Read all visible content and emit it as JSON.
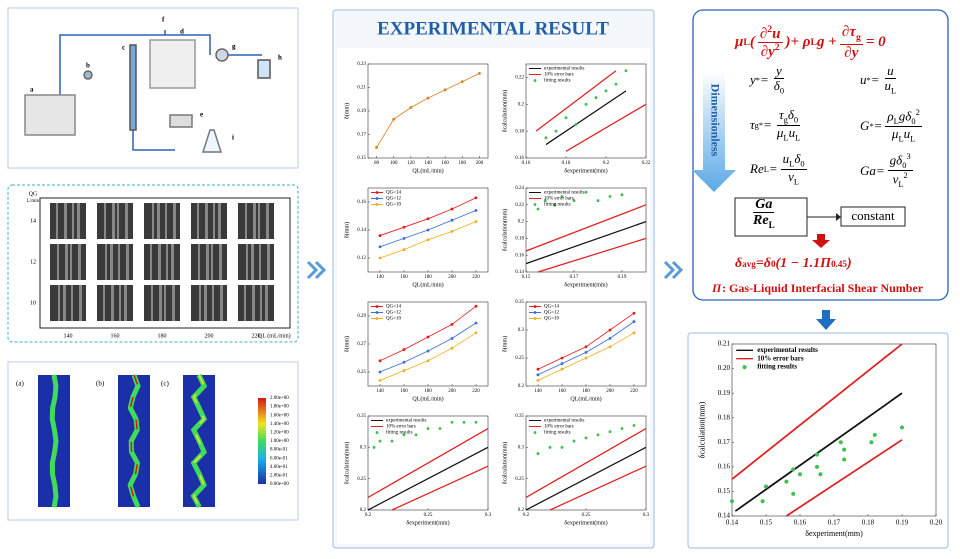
{
  "apparatus": {
    "labels": [
      "a",
      "b",
      "c",
      "d",
      "e",
      "f",
      "g",
      "h",
      "i"
    ]
  },
  "images": {
    "qg": "QG",
    "qg_unit": "L/min",
    "rows": [
      "14",
      "12",
      "10"
    ],
    "cols": [
      "140",
      "160",
      "180",
      "200",
      "220"
    ],
    "ql": "QL (mL/min)"
  },
  "cfd": {
    "panels": [
      "(a)",
      "(b)",
      "(c)"
    ],
    "colorbar": [
      "2.00e+00",
      "1.80e+00",
      "1.60e+00",
      "1.40e+00",
      "1.20e+00",
      "1.00e+00",
      "8.00e-01",
      "6.00e-01",
      "4.00e-01",
      "2.00e-01",
      "0.00e+00"
    ]
  },
  "results": {
    "title": "EXPERIMENTAL RESULT",
    "charts": [
      {
        "type": "line",
        "xlabel": "QL(mL/min)",
        "ylabel": "δ(mm)",
        "xlim": [
          70,
          210
        ],
        "xticks": [
          80,
          100,
          120,
          140,
          160,
          180,
          200
        ],
        "ylim": [
          0.15,
          0.23
        ],
        "yticks": [
          0.15,
          0.17,
          0.19,
          0.21,
          0.23
        ],
        "series": [
          {
            "color": "#d9822b",
            "x": [
              80,
              100,
              120,
              140,
              160,
              180,
              200
            ],
            "values": [
              0.159,
              0.183,
              0.193,
              0.201,
              0.208,
              0.215,
              0.222
            ]
          }
        ]
      },
      {
        "type": "parity",
        "xlabel": "δexperiment(mm)",
        "ylabel": "δcalculation(mm)",
        "xlim": [
          0.16,
          0.22
        ],
        "xticks": [
          0.16,
          0.18,
          0.2,
          0.22
        ],
        "ylim": [
          0.16,
          0.23
        ],
        "yticks": [
          0.16,
          0.18,
          0.2,
          0.22
        ],
        "lines": [
          {
            "name": "experimental results",
            "color": "#111",
            "x": [
              0.17,
              0.21
            ],
            "values": [
              0.17,
              0.21
            ]
          },
          {
            "name": "10% error bars",
            "color": "#e02020",
            "x": [
              0.165,
              0.205
            ],
            "values": [
              0.18,
              0.225
            ]
          },
          {
            "color": "#e02020",
            "x": [
              0.18,
              0.22
            ],
            "values": [
              0.165,
              0.2
            ]
          }
        ],
        "series": [
          {
            "name": "fitting results",
            "color": "#3fbf4f",
            "x": [
              0.17,
              0.175,
              0.18,
              0.185,
              0.19,
              0.195,
              0.2,
              0.205,
              0.21
            ],
            "values": [
              0.175,
              0.18,
              0.19,
              0.185,
              0.2,
              0.205,
              0.21,
              0.215,
              0.225
            ]
          }
        ]
      },
      {
        "type": "line",
        "xlabel": "QL(mL/min)",
        "ylabel": "δ(mm)",
        "xlim": [
          130,
          230
        ],
        "xticks": [
          140,
          160,
          180,
          200,
          220
        ],
        "ylim": [
          0.11,
          0.17
        ],
        "yticks": [
          0.12,
          0.14,
          0.16
        ],
        "series": [
          {
            "name": "QG=14",
            "color": "#e02020",
            "x": [
              140,
              160,
              180,
              200,
              220
            ],
            "values": [
              0.136,
              0.142,
              0.148,
              0.155,
              0.163
            ]
          },
          {
            "name": "QG=12",
            "color": "#3b6fd6",
            "x": [
              140,
              160,
              180,
              200,
              220
            ],
            "values": [
              0.128,
              0.134,
              0.14,
              0.147,
              0.154
            ]
          },
          {
            "name": "QG=10",
            "color": "#f0b020",
            "x": [
              140,
              160,
              180,
              200,
              220
            ],
            "values": [
              0.12,
              0.126,
              0.133,
              0.139,
              0.146
            ]
          }
        ]
      },
      {
        "type": "parity",
        "xlabel": "δexperiment(mm)",
        "ylabel": "δcalculation(mm)",
        "xlim": [
          0.15,
          0.2
        ],
        "xticks": [
          0.15,
          0.17,
          0.19
        ],
        "ylim": [
          0.14,
          0.24
        ],
        "yticks": [
          0.14,
          0.16,
          0.18,
          0.2,
          0.22,
          0.24
        ],
        "lines": [
          {
            "name": "experimental results",
            "color": "#111",
            "x": [
              0.15,
              0.2
            ],
            "values": [
              0.15,
              0.2
            ]
          },
          {
            "name": "10% error bars",
            "color": "#e02020",
            "x": [
              0.15,
              0.2
            ],
            "values": [
              0.165,
              0.22
            ]
          },
          {
            "color": "#e02020",
            "x": [
              0.155,
              0.2
            ],
            "values": [
              0.14,
              0.18
            ]
          }
        ],
        "series": [
          {
            "name": "fitting results",
            "color": "#3fbf4f",
            "x": [
              0.155,
              0.158,
              0.162,
              0.165,
              0.17,
              0.175,
              0.18,
              0.185,
              0.19
            ],
            "values": [
              0.215,
              0.225,
              0.22,
              0.23,
              0.225,
              0.235,
              0.225,
              0.23,
              0.232
            ]
          }
        ]
      },
      {
        "type": "line",
        "xlabel": "QL(mL/min)",
        "ylabel": "δ(mm)",
        "xlim": [
          130,
          230
        ],
        "xticks": [
          140,
          160,
          180,
          200,
          220
        ],
        "ylim": [
          0.24,
          0.3
        ],
        "yticks": [
          0.25,
          0.27,
          0.29
        ],
        "series": [
          {
            "name": "QG=14",
            "color": "#e02020",
            "x": [
              140,
              160,
              180,
              200,
              220
            ],
            "values": [
              0.258,
              0.266,
              0.275,
              0.284,
              0.297
            ]
          },
          {
            "name": "QG=12",
            "color": "#3b6fd6",
            "x": [
              140,
              160,
              180,
              200,
              220
            ],
            "values": [
              0.25,
              0.257,
              0.265,
              0.274,
              0.285
            ]
          },
          {
            "name": "QG=10",
            "color": "#f0b020",
            "x": [
              140,
              160,
              180,
              200,
              220
            ],
            "values": [
              0.244,
              0.251,
              0.258,
              0.267,
              0.278
            ]
          }
        ]
      },
      {
        "type": "line",
        "xlabel": "QL(mL/min)",
        "ylabel": "δ(mm)",
        "xlim": [
          130,
          230
        ],
        "xticks": [
          140,
          160,
          180,
          200,
          220
        ],
        "ylim": [
          0.2,
          0.35
        ],
        "yticks": [
          0.2,
          0.25,
          0.3,
          0.35
        ],
        "series": [
          {
            "name": "QG=14",
            "color": "#e02020",
            "x": [
              140,
              160,
              180,
              200,
              220
            ],
            "values": [
              0.23,
              0.25,
              0.27,
              0.3,
              0.33
            ]
          },
          {
            "name": "QG=12",
            "color": "#3b6fd6",
            "x": [
              140,
              160,
              180,
              200,
              220
            ],
            "values": [
              0.22,
              0.24,
              0.26,
              0.285,
              0.315
            ]
          },
          {
            "name": "QG=10",
            "color": "#f0b020",
            "x": [
              140,
              160,
              180,
              200,
              220
            ],
            "values": [
              0.21,
              0.23,
              0.25,
              0.27,
              0.295
            ]
          }
        ]
      },
      {
        "type": "parity",
        "xlabel": "δexperiment(mm)",
        "ylabel": "δcalculation(mm)",
        "xlim": [
          0.2,
          0.3
        ],
        "xticks": [
          0.2,
          0.25,
          0.3
        ],
        "ylim": [
          0.2,
          0.35
        ],
        "yticks": [
          0.2,
          0.25,
          0.3,
          0.35
        ],
        "lines": [
          {
            "name": "experimental results",
            "color": "#111",
            "x": [
              0.2,
              0.3
            ],
            "values": [
              0.2,
              0.3
            ]
          },
          {
            "name": "10% error bars",
            "color": "#e02020",
            "x": [
              0.2,
              0.3
            ],
            "values": [
              0.22,
              0.33
            ]
          },
          {
            "color": "#e02020",
            "x": [
              0.22,
              0.3
            ],
            "values": [
              0.2,
              0.27
            ]
          }
        ],
        "series": [
          {
            "name": "fitting results",
            "color": "#3fbf4f",
            "x": [
              0.205,
              0.21,
              0.22,
              0.23,
              0.24,
              0.25,
              0.26,
              0.27,
              0.28,
              0.29
            ],
            "values": [
              0.3,
              0.31,
              0.31,
              0.32,
              0.32,
              0.33,
              0.33,
              0.34,
              0.34,
              0.34
            ]
          }
        ]
      },
      {
        "type": "parity",
        "xlabel": "δexperiment(mm)",
        "ylabel": "δcalculation(mm)",
        "xlim": [
          0.2,
          0.3
        ],
        "xticks": [
          0.2,
          0.25,
          0.3
        ],
        "ylim": [
          0.2,
          0.35
        ],
        "yticks": [
          0.2,
          0.25,
          0.3,
          0.35
        ],
        "lines": [
          {
            "name": "experimental results",
            "color": "#111",
            "x": [
              0.2,
              0.3
            ],
            "values": [
              0.2,
              0.3
            ]
          },
          {
            "name": "10% error bars",
            "color": "#e02020",
            "x": [
              0.2,
              0.3
            ],
            "values": [
              0.22,
              0.33
            ]
          },
          {
            "color": "#e02020",
            "x": [
              0.22,
              0.3
            ],
            "values": [
              0.2,
              0.27
            ]
          }
        ],
        "series": [
          {
            "name": "fitting results",
            "color": "#3fbf4f",
            "x": [
              0.21,
              0.22,
              0.23,
              0.24,
              0.25,
              0.26,
              0.27,
              0.28,
              0.29
            ],
            "values": [
              0.29,
              0.3,
              0.3,
              0.31,
              0.315,
              0.32,
              0.325,
              0.33,
              0.335
            ]
          }
        ]
      }
    ]
  },
  "model": {
    "governing": [
      {
        "b": "μ",
        "s": "L"
      },
      {
        "b": "("
      },
      {
        "num": [
          {
            "b": "∂",
            "p": "2"
          },
          {
            "b": "u"
          }
        ],
        "den": [
          {
            "b": "∂"
          },
          {
            "b": "y",
            "p": "2"
          }
        ]
      },
      {
        "b": ")"
      },
      {
        "b": " + ρ",
        "s": "L"
      },
      {
        "b": "g + "
      },
      {
        "num": [
          {
            "b": "∂"
          },
          {
            "b": "τ",
            "s": "g"
          }
        ],
        "den": [
          {
            "b": "∂"
          },
          {
            "b": "y"
          }
        ]
      },
      {
        "b": " = 0"
      }
    ],
    "label": "Dimensionless",
    "groups": [
      [
        {
          "b": "y",
          "p": "*"
        },
        {
          "b": " = "
        },
        {
          "num": [
            {
              "b": "y"
            }
          ],
          "den": [
            {
              "b": "δ",
              "s": "0"
            }
          ]
        }
      ],
      [
        {
          "b": "u",
          "p": "*"
        },
        {
          "b": " = "
        },
        {
          "num": [
            {
              "b": "u"
            }
          ],
          "den": [
            {
              "b": "u",
              "s": "L"
            }
          ]
        }
      ],
      [
        {
          "b": "τ",
          "s": "g",
          "p": "*"
        },
        {
          "b": " = "
        },
        {
          "num": [
            {
              "b": "τ",
              "s": "g"
            },
            {
              "b": "δ",
              "s": "0"
            }
          ],
          "den": [
            {
              "b": "μ",
              "s": "L"
            },
            {
              "b": "u",
              "s": "L"
            }
          ]
        }
      ],
      [
        {
          "b": "G",
          "p": "*"
        },
        {
          "b": " = "
        },
        {
          "num": [
            {
              "b": "ρ",
              "s": "L"
            },
            {
              "b": "g"
            },
            {
              "b": "δ",
              "s": "0",
              "p": "2"
            }
          ],
          "den": [
            {
              "b": "μ",
              "s": "L"
            },
            {
              "b": "u",
              "s": "L"
            }
          ]
        }
      ],
      [
        {
          "b": "Re",
          "s": "L"
        },
        {
          "b": " = "
        },
        {
          "num": [
            {
              "b": "u",
              "s": "L"
            },
            {
              "b": "δ",
              "s": "0"
            }
          ],
          "den": [
            {
              "b": "ν",
              "s": "L"
            }
          ]
        }
      ],
      [
        {
          "b": "Ga"
        },
        {
          "b": " = "
        },
        {
          "num": [
            {
              "b": "g"
            },
            {
              "b": "δ",
              "s": "0",
              "p": "3"
            }
          ],
          "den": [
            {
              "b": "ν",
              "s": "L",
              "p": "2"
            }
          ]
        }
      ]
    ],
    "ratio": [
      {
        "num": [
          {
            "b": "Ga"
          }
        ],
        "den": [
          {
            "b": "Re",
            "s": "L"
          }
        ]
      }
    ],
    "result": "constant",
    "correlation": [
      {
        "b": "δ",
        "s": "avg"
      },
      {
        "b": " = "
      },
      {
        "b": "δ",
        "s": "0"
      },
      {
        "b": " (1 − 1.1"
      },
      {
        "b": "Π",
        "p": "0.45"
      },
      {
        "b": ")"
      }
    ],
    "pi_symbol": "Π",
    "pi_definition": ": Gas-Liquid Interfacial Shear Number"
  },
  "validation": {
    "type": "parity",
    "xlabel": "δexperiment(mm)",
    "ylabel": "δcalculation(mm)",
    "xlim": [
      0.14,
      0.2
    ],
    "xticks": [
      0.14,
      0.15,
      0.16,
      0.17,
      0.18,
      0.19,
      {
        "value": 0.2,
        "label": "0.20"
      }
    ],
    "ylim": [
      0.14,
      0.21
    ],
    "yticks": [
      0.14,
      0.15,
      0.16,
      0.17,
      0.18,
      0.19,
      {
        "value": 0.2,
        "label": "0.20"
      },
      0.21
    ],
    "lines": [
      {
        "name": "experimental results",
        "color": "#111",
        "x": [
          0.141,
          0.19
        ],
        "values": [
          0.142,
          0.19
        ]
      },
      {
        "name": "10% error bars",
        "color": "#e02020",
        "x": [
          0.14,
          0.19
        ],
        "values": [
          0.155,
          0.21
        ]
      },
      {
        "color": "#e02020",
        "x": [
          0.156,
          0.19
        ],
        "values": [
          0.14,
          0.171
        ]
      }
    ],
    "series": [
      {
        "name": "fitting results",
        "color": "#3fbf4f",
        "x": [
          0.14,
          0.149,
          0.15,
          0.156,
          0.158,
          0.158,
          0.16,
          0.165,
          0.165,
          0.166,
          0.173,
          0.173,
          0.172,
          0.182,
          0.181,
          0.19
        ],
        "values": [
          0.146,
          0.146,
          0.152,
          0.154,
          0.149,
          0.159,
          0.157,
          0.165,
          0.16,
          0.157,
          0.167,
          0.163,
          0.17,
          0.173,
          0.17,
          0.176
        ]
      }
    ]
  }
}
